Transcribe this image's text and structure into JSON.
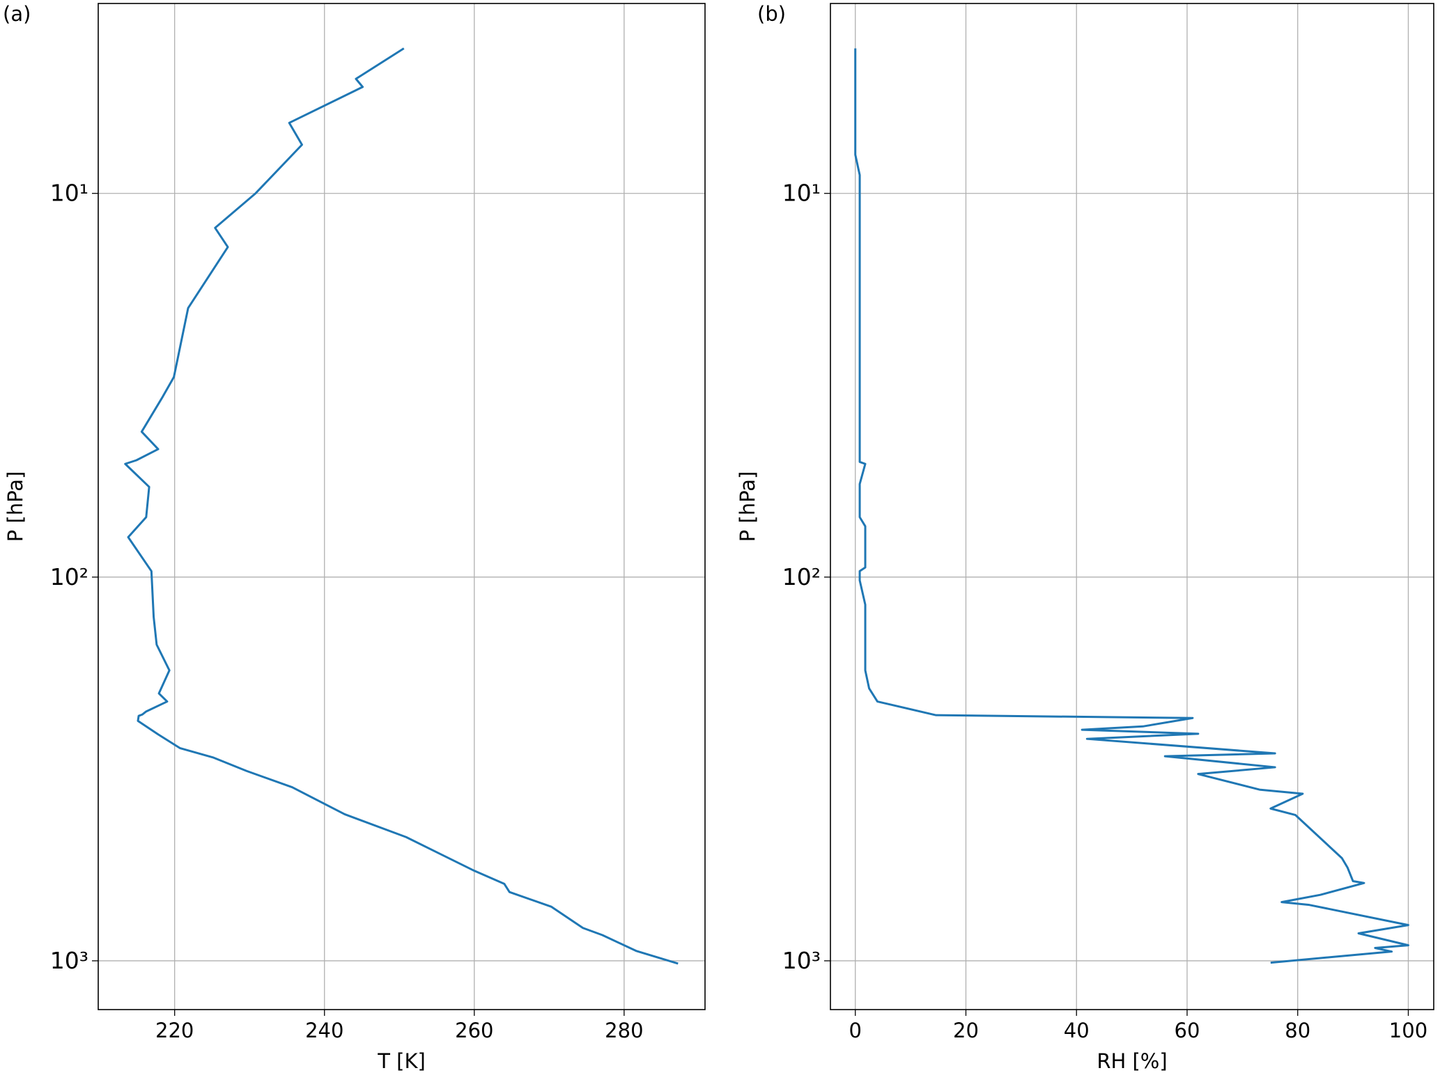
{
  "chart_data": [
    {
      "type": "line",
      "panel_label": "(a)",
      "xlabel": "T [K]",
      "ylabel": "P [hPa]",
      "color": "#1f77b4",
      "grid": true,
      "yscale": "log",
      "y_inverted": true,
      "xlim": [
        209.8,
        290.8
      ],
      "xticks": [
        220,
        240,
        260,
        280
      ],
      "ylim": [
        1340,
        3.2
      ],
      "yticks": [
        {
          "value": 10,
          "label": "10¹"
        },
        {
          "value": 100,
          "label": "10²"
        },
        {
          "value": 1000,
          "label": "10³"
        }
      ],
      "x": [
        250.6,
        244.2,
        245.1,
        235.3,
        237.0,
        230.8,
        225.4,
        227.1,
        221.8,
        219.9,
        218.4,
        215.6,
        217.8,
        214.9,
        213.4,
        216.6,
        216.2,
        213.8,
        216.9,
        217.2,
        217.6,
        219.3,
        217.9,
        219.0,
        216.2,
        215.7,
        215.2,
        215.1,
        217.8,
        220.7,
        225.1,
        229.6,
        235.7,
        242.7,
        250.9,
        259.8,
        264.0,
        264.7,
        270.3,
        274.5,
        277.1,
        281.6,
        287.2
      ],
      "y": [
        4.19,
        5.03,
        5.28,
        6.55,
        7.47,
        10,
        12.3,
        13.8,
        19.9,
        30.1,
        33.9,
        41.8,
        46.4,
        49.6,
        50.7,
        58.2,
        69.8,
        78.7,
        96.5,
        127,
        150,
        175,
        201,
        211,
        224,
        228,
        230,
        237,
        257,
        279,
        295,
        320,
        353,
        415,
        476,
        580,
        630,
        662,
        723,
        821,
        857,
        942,
        1017
      ]
    },
    {
      "type": "line",
      "panel_label": "(b)",
      "xlabel": "RH [%]",
      "ylabel": "P [hPa]",
      "color": "#1f77b4",
      "grid": true,
      "yscale": "log",
      "y_inverted": true,
      "xlim": [
        -4.5,
        104.6
      ],
      "xticks": [
        0,
        20,
        40,
        60,
        80,
        100
      ],
      "ylim": [
        1340,
        3.2
      ],
      "yticks": [
        {
          "value": 10,
          "label": "10¹"
        },
        {
          "value": 100,
          "label": "10²"
        },
        {
          "value": 1000,
          "label": "10³"
        }
      ],
      "x": [
        0,
        0,
        0.8,
        0.8,
        1.8,
        0.8,
        0.8,
        1.8,
        1.8,
        0.8,
        0.8,
        1.8,
        1.8,
        2.5,
        4.0,
        14.6,
        61.0,
        52.0,
        41.0,
        62.0,
        41.9,
        75.9,
        56.0,
        75.9,
        62.0,
        73.1,
        80.9,
        75.1,
        79.6,
        88.0,
        89.0,
        90.0,
        92.0,
        84.1,
        77.1,
        82.1,
        100,
        91.0,
        100,
        94.0,
        97.0,
        75.1
      ],
      "y": [
        4.19,
        7.93,
        8.96,
        50.1,
        50.7,
        57.2,
        69.8,
        73.7,
        94.4,
        96.5,
        102,
        118,
        175,
        195,
        211,
        229,
        233,
        245,
        250,
        256,
        264,
        288,
        293,
        313,
        326,
        358,
        367,
        401,
        417,
        540,
        571,
        620,
        627,
        673,
        703,
        715,
        807,
        848,
        911,
        926,
        946,
        1011
      ]
    }
  ]
}
